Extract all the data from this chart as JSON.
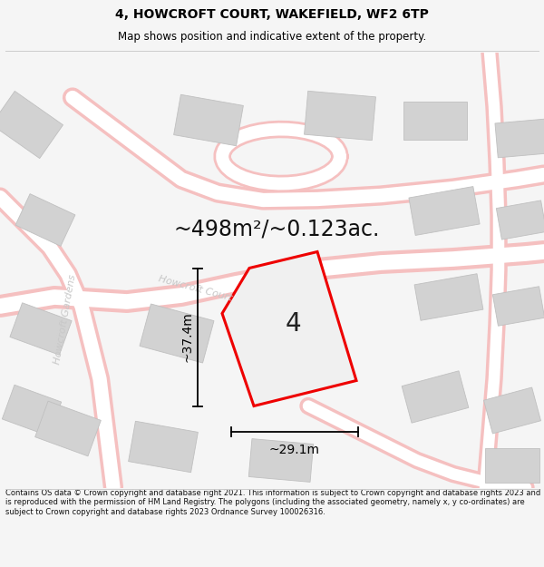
{
  "title": "4, HOWCROFT COURT, WAKEFIELD, WF2 6TP",
  "subtitle": "Map shows position and indicative extent of the property.",
  "area_text": "~498m²/~0.123ac.",
  "width_label": "~29.1m",
  "height_label": "~37.4m",
  "plot_number": "4",
  "footer": "Contains OS data © Crown copyright and database right 2021. This information is subject to Crown copyright and database rights 2023 and is reproduced with the permission of HM Land Registry. The polygons (including the associated geometry, namely x, y co-ordinates) are subject to Crown copyright and database rights 2023 Ordnance Survey 100026316.",
  "bg_color": "#f5f5f5",
  "map_bg": "#ebebeb",
  "road_color": "#f5c0c0",
  "road_fill": "#ffffff",
  "building_color": "#d2d2d2",
  "building_edge": "#c0c0c0",
  "plot_fill": "#e8e8e8",
  "plot_edge": "#ee0000",
  "street_label_color": "#c8c8c8",
  "dim_color": "#000000",
  "title_color": "#000000",
  "footer_color": "#111111",
  "title_fontsize": 10,
  "subtitle_fontsize": 8.5,
  "area_fontsize": 17,
  "dim_fontsize": 10,
  "plot_label_fontsize": 20,
  "footer_fontsize": 6.0,
  "street_fontsize": 8
}
